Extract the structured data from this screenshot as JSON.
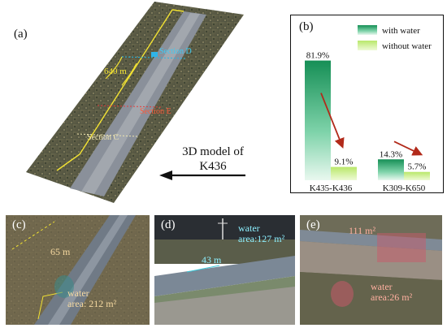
{
  "panel_a": {
    "label": "(a)",
    "dimension": "640 m",
    "section_d": "Section D",
    "section_e": "Section E",
    "section_c": "Section C",
    "caption_line1": "3D model of",
    "caption_line2": "K436"
  },
  "panel_b": {
    "label": "(b)"
  },
  "panel_c": {
    "label": "(c)",
    "length": "65 m",
    "water_line1": "water",
    "water_line2": "area:  212 m²"
  },
  "panel_d": {
    "label": "(d)",
    "water_line1": "water",
    "water_line2": "area:127 m²",
    "length": "43 m"
  },
  "panel_e": {
    "label": "(e)",
    "area_top": "111 m²",
    "water_line1": "water",
    "water_line2": "area:26 m²"
  },
  "colors": {
    "with_water": "#1e9e62",
    "without_water": "#c8ef8c",
    "arrow": "#b22a1a"
  },
  "chart_data": {
    "type": "bar",
    "categories": [
      "K435-K436",
      "K309-K650"
    ],
    "series": [
      {
        "name": "with water",
        "values": [
          81.9,
          14.3
        ]
      },
      {
        "name": "without water",
        "values": [
          9.1,
          5.7
        ]
      }
    ],
    "data_labels": [
      [
        "81.9%",
        "14.3%"
      ],
      [
        "9.1%",
        "5.7%"
      ]
    ],
    "ylim": [
      0,
      100
    ],
    "legend_position": "top-right",
    "grid": false
  }
}
